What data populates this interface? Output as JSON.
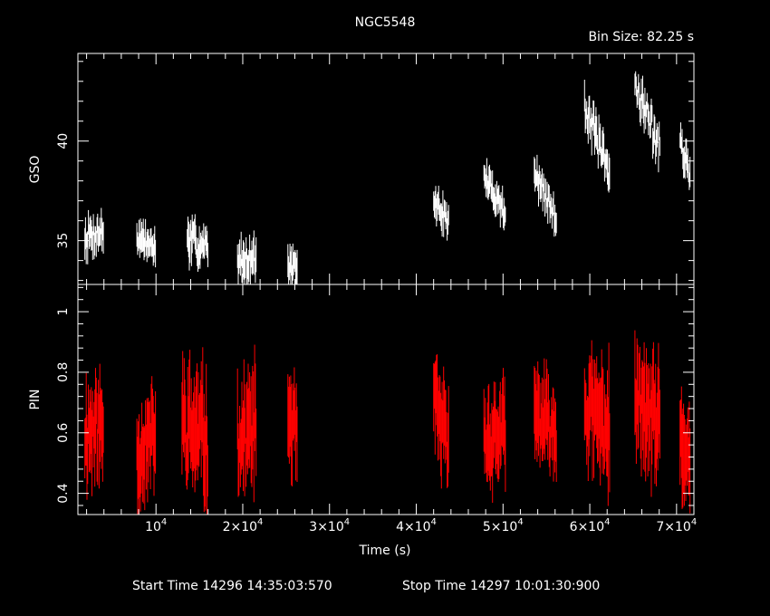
{
  "title": "NGC5548",
  "bin_size_text": "Bin Size: 82.25 s",
  "start_time_text": "Start Time 14296 14:35:03:570",
  "stop_time_text": "Stop Time 14297 10:01:30:900",
  "colors": {
    "background": "#000000",
    "axes": "#ffffff",
    "gso": "#ffffff",
    "pin": "#ff0000"
  },
  "chart_data": [
    {
      "type": "scatter",
      "panel": "top",
      "ylabel": "GSO",
      "xlim": [
        1000,
        72000
      ],
      "ylim": [
        32.8,
        44.4
      ],
      "yticks": [
        35,
        40
      ],
      "segments": [
        {
          "t0": 1800,
          "t1": 4000,
          "y0": 35.2,
          "y1": 35.5,
          "noise": 0.7,
          "err": 0.6
        },
        {
          "t0": 7800,
          "t1": 10000,
          "y0": 35.2,
          "y1": 34.6,
          "noise": 0.5,
          "err": 0.6
        },
        {
          "t0": 13600,
          "t1": 16000,
          "y0": 35.0,
          "y1": 34.6,
          "noise": 0.7,
          "err": 0.7
        },
        {
          "t0": 19400,
          "t1": 21600,
          "y0": 34.0,
          "y1": 34.2,
          "noise": 0.6,
          "err": 0.7
        },
        {
          "t0": 25200,
          "t1": 26300,
          "y0": 33.8,
          "y1": 33.4,
          "noise": 0.5,
          "err": 0.7
        },
        {
          "t0": 42000,
          "t1": 43800,
          "y0": 37.0,
          "y1": 35.9,
          "noise": 0.5,
          "err": 0.6
        },
        {
          "t0": 47800,
          "t1": 50300,
          "y0": 38.2,
          "y1": 36.4,
          "noise": 0.5,
          "err": 0.6
        },
        {
          "t0": 53600,
          "t1": 56200,
          "y0": 38.4,
          "y1": 36.0,
          "noise": 0.6,
          "err": 0.6
        },
        {
          "t0": 59400,
          "t1": 62300,
          "y0": 42.0,
          "y1": 38.0,
          "noise": 0.8,
          "err": 0.7
        },
        {
          "t0": 65200,
          "t1": 68100,
          "y0": 43.0,
          "y1": 39.6,
          "noise": 0.8,
          "err": 0.6
        },
        {
          "t0": 70400,
          "t1": 71600,
          "y0": 40.0,
          "y1": 38.2,
          "noise": 0.5,
          "err": 0.6
        }
      ]
    },
    {
      "type": "scatter",
      "panel": "bottom",
      "ylabel": "PIN",
      "xlabel": "Time (s)",
      "xlim": [
        1000,
        72000
      ],
      "ylim": [
        0.33,
        1.09
      ],
      "yticks": [
        0.4,
        0.6,
        0.8,
        1
      ],
      "xticks": [
        10000,
        20000,
        30000,
        40000,
        50000,
        60000,
        70000
      ],
      "xtick_labels": [
        {
          "m": "10",
          "e": "4"
        },
        {
          "m": "2×10",
          "e": "4"
        },
        {
          "m": "3×10",
          "e": "4"
        },
        {
          "m": "4×10",
          "e": "4"
        },
        {
          "m": "5×10",
          "e": "4"
        },
        {
          "m": "6×10",
          "e": "4"
        },
        {
          "m": "7×10",
          "e": "4"
        }
      ],
      "segments": [
        {
          "t0": 1800,
          "t1": 4000,
          "y0": 0.6,
          "y1": 0.62,
          "noise": 0.1,
          "err": 0.12
        },
        {
          "t0": 7800,
          "t1": 10000,
          "y0": 0.52,
          "y1": 0.6,
          "noise": 0.08,
          "err": 0.12
        },
        {
          "t0": 13000,
          "t1": 16000,
          "y0": 0.62,
          "y1": 0.58,
          "noise": 0.12,
          "err": 0.14
        },
        {
          "t0": 19400,
          "t1": 21600,
          "y0": 0.58,
          "y1": 0.62,
          "noise": 0.1,
          "err": 0.13
        },
        {
          "t0": 25200,
          "t1": 26300,
          "y0": 0.66,
          "y1": 0.58,
          "noise": 0.08,
          "err": 0.12
        },
        {
          "t0": 42000,
          "t1": 43800,
          "y0": 0.7,
          "y1": 0.55,
          "noise": 0.08,
          "err": 0.11
        },
        {
          "t0": 47800,
          "t1": 50300,
          "y0": 0.58,
          "y1": 0.6,
          "noise": 0.08,
          "err": 0.11
        },
        {
          "t0": 53600,
          "t1": 56200,
          "y0": 0.66,
          "y1": 0.6,
          "noise": 0.08,
          "err": 0.11
        },
        {
          "t0": 59400,
          "t1": 62300,
          "y0": 0.68,
          "y1": 0.62,
          "noise": 0.1,
          "err": 0.13
        },
        {
          "t0": 65200,
          "t1": 68100,
          "y0": 0.7,
          "y1": 0.62,
          "noise": 0.1,
          "err": 0.13
        },
        {
          "t0": 70400,
          "t1": 71600,
          "y0": 0.56,
          "y1": 0.52,
          "noise": 0.08,
          "err": 0.12
        }
      ]
    }
  ]
}
